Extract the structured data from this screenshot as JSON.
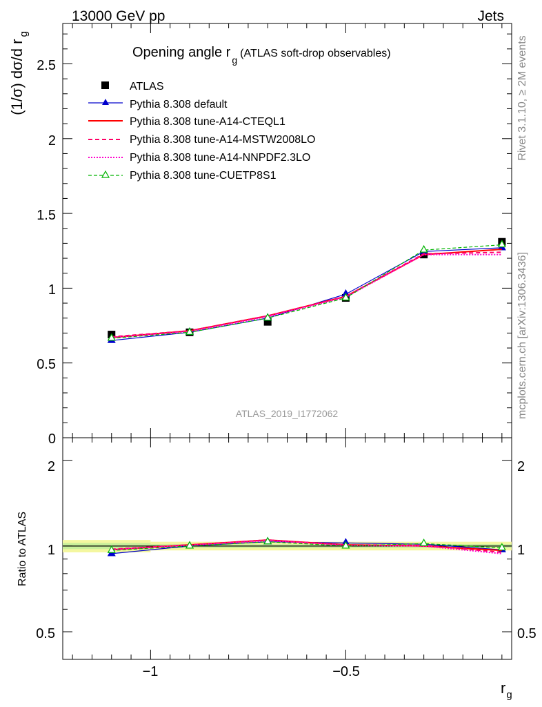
{
  "header": {
    "energy_label": "13000 GeV pp",
    "process_label": "Jets",
    "title_main": "Opening angle r",
    "title_sub": "g",
    "title_note": "(ATLAS soft-drop observables)",
    "side_rivet": "Rivet 3.1.10, ≥ 2M events",
    "side_mcplots": "mcplots.cern.ch [arXiv:1306.3436]",
    "watermark": "ATLAS_2019_I1772062"
  },
  "legend": {
    "placement": "top-left",
    "entries": [
      "ATLAS",
      "Pythia 8.308 default",
      "Pythia 8.308 tune-A14-CTEQL1",
      "Pythia 8.308 tune-A14-MSTW2008LO",
      "Pythia 8.308 tune-A14-NNPDF2.3LO",
      "Pythia 8.308 tune-CUETP8S1"
    ]
  },
  "axes": {
    "ylabel_main": "(1/σ) dσ/d r",
    "ylabel_main_sub": "g",
    "ylabel_ratio": "Ratio to ATLAS",
    "xlabel": "r",
    "xlabel_sub": "g",
    "main_ticks": [
      "0",
      "0.5",
      "1",
      "1.5",
      "2",
      "2.5"
    ],
    "ratio_ticks_left": [
      "0.5",
      "1",
      "2"
    ],
    "ratio_ticks_right": [
      "0.5",
      "1",
      "2"
    ],
    "x_ticks": [
      "−1",
      "−0.5"
    ]
  },
  "colors": {
    "data": "#000000",
    "default": "#0000cc",
    "cteql1": "#ff0000",
    "mstw": "#ff0066",
    "nnpdf": "#ff00cc",
    "cuetp8s1": "#00b400",
    "band_outer": "#f4f7a0",
    "band_inner": "#c8ef9a"
  },
  "chart_data": [
    {
      "panel": "main",
      "type": "line",
      "xlim": [
        -1.225,
        -0.075
      ],
      "ylim": [
        0,
        2.77
      ],
      "x": [
        -1.1,
        -0.9,
        -0.7,
        -0.5,
        -0.3,
        -0.1
      ],
      "series": [
        {
          "name": "ATLAS",
          "key": "data",
          "values": [
            0.69,
            0.705,
            0.775,
            0.935,
            1.225,
            1.31
          ]
        },
        {
          "name": "Pythia 8.308 default",
          "key": "default",
          "values": [
            0.65,
            0.705,
            0.8,
            0.96,
            1.245,
            1.27
          ]
        },
        {
          "name": "Pythia 8.308 tune-A14-CTEQL1",
          "key": "cteql1",
          "values": [
            0.67,
            0.715,
            0.815,
            0.945,
            1.225,
            1.26
          ]
        },
        {
          "name": "Pythia 8.308 tune-A14-MSTW2008LO",
          "key": "mstw",
          "values": [
            0.675,
            0.715,
            0.815,
            0.945,
            1.23,
            1.24
          ]
        },
        {
          "name": "Pythia 8.308 tune-A14-NNPDF2.3LO",
          "key": "nnpdf",
          "values": [
            0.67,
            0.71,
            0.81,
            0.94,
            1.225,
            1.225
          ]
        },
        {
          "name": "Pythia 8.308 tune-CUETP8S1",
          "key": "cuetp8s1",
          "values": [
            0.665,
            0.705,
            0.8,
            0.935,
            1.255,
            1.29
          ]
        }
      ]
    },
    {
      "panel": "ratio",
      "type": "line",
      "xlim": [
        -1.225,
        -0.075
      ],
      "ylim": [
        0.4,
        2.4
      ],
      "log_y": true,
      "x": [
        -1.1,
        -0.9,
        -0.7,
        -0.5,
        -0.3,
        -0.1
      ],
      "band_outer": [
        [
          -1.225,
          -1.0,
          0.95,
          1.05
        ],
        [
          -1.0,
          -0.075,
          0.965,
          1.035
        ]
      ],
      "band_inner": [
        [
          -1.225,
          -1.0,
          0.975,
          1.025
        ],
        [
          -1.0,
          -0.075,
          0.985,
          1.015
        ]
      ],
      "series": [
        {
          "name": "Pythia 8.308 default",
          "key": "default",
          "values": [
            0.94,
            1.0,
            1.035,
            1.025,
            1.015,
            0.97
          ]
        },
        {
          "name": "Pythia 8.308 tune-A14-CTEQL1",
          "key": "cteql1",
          "values": [
            0.97,
            1.01,
            1.05,
            1.01,
            1.0,
            0.965
          ]
        },
        {
          "name": "Pythia 8.308 tune-A14-MSTW2008LO",
          "key": "mstw",
          "values": [
            0.975,
            1.01,
            1.05,
            1.01,
            1.005,
            0.95
          ]
        },
        {
          "name": "Pythia 8.308 tune-A14-NNPDF2.3LO",
          "key": "nnpdf",
          "values": [
            0.97,
            1.005,
            1.045,
            1.005,
            1.0,
            0.94
          ]
        },
        {
          "name": "Pythia 8.308 tune-CUETP8S1",
          "key": "cuetp8s1",
          "values": [
            0.965,
            1.0,
            1.035,
            1.0,
            1.02,
            0.985
          ]
        }
      ]
    }
  ]
}
